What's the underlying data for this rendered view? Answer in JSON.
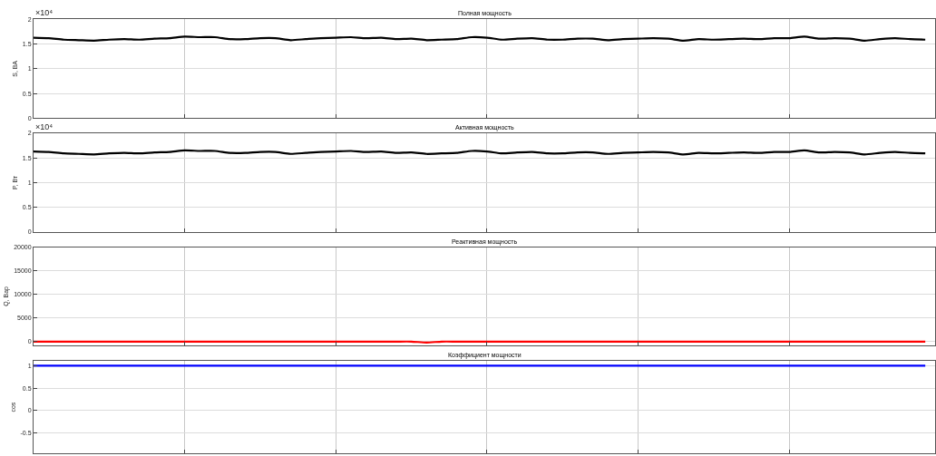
{
  "chart_data": [
    {
      "type": "line",
      "title": "Полная мощность",
      "ylabel": "S, ВА",
      "annotations": [
        "×10⁴"
      ],
      "tick_labels": "y",
      "grid": true,
      "marker": "none",
      "line_style": "solid",
      "categories": [
        null,
        null,
        null,
        null,
        null,
        null,
        null,
        null,
        null,
        null,
        null,
        null,
        null,
        null,
        null,
        null,
        null,
        null,
        null,
        null,
        null,
        null,
        null,
        null,
        null,
        null,
        null,
        null,
        null,
        null,
        null,
        null,
        null,
        null,
        null,
        null,
        null,
        null,
        null,
        null,
        null,
        null,
        null,
        null,
        null,
        null,
        null,
        null,
        null,
        null,
        null,
        null,
        null,
        null,
        null,
        null,
        null,
        null,
        null,
        null
      ],
      "ylim": [
        0,
        2
      ],
      "yticks": [
        0,
        0.5,
        1,
        1.5,
        2
      ],
      "series": [
        {
          "color": "#000000",
          "values": [
            1.63,
            1.62,
            1.59,
            1.58,
            1.57,
            1.59,
            1.6,
            1.59,
            1.61,
            1.62,
            1.65,
            1.64,
            1.64,
            1.6,
            1.6,
            1.62,
            1.62,
            1.58,
            1.6,
            1.62,
            1.63,
            1.64,
            1.62,
            1.63,
            1.6,
            1.61,
            1.58,
            1.59,
            1.6,
            1.64,
            1.63,
            1.59,
            1.61,
            1.62,
            1.59,
            1.59,
            1.61,
            1.61,
            1.58,
            1.6,
            1.61,
            1.62,
            1.61,
            1.57,
            1.6,
            1.59,
            1.6,
            1.61,
            1.6,
            1.62,
            1.62,
            1.65,
            1.61,
            1.62,
            1.61,
            1.57,
            1.6,
            1.62,
            1.6,
            1.59
          ]
        }
      ]
    },
    {
      "type": "line",
      "title": "Активная мощность",
      "ylabel": "P, Вт",
      "annotations": [
        "×10⁴"
      ],
      "tick_labels": "y",
      "grid": true,
      "marker": "none",
      "line_style": "solid",
      "categories": [
        null,
        null,
        null,
        null,
        null,
        null,
        null,
        null,
        null,
        null,
        null,
        null,
        null,
        null,
        null,
        null,
        null,
        null,
        null,
        null,
        null,
        null,
        null,
        null,
        null,
        null,
        null,
        null,
        null,
        null,
        null,
        null,
        null,
        null,
        null,
        null,
        null,
        null,
        null,
        null,
        null,
        null,
        null,
        null,
        null,
        null,
        null,
        null,
        null,
        null,
        null,
        null,
        null,
        null,
        null,
        null,
        null,
        null,
        null,
        null
      ],
      "ylim": [
        0,
        2
      ],
      "yticks": [
        0,
        0.5,
        1,
        1.5,
        2
      ],
      "series": [
        {
          "color": "#000000",
          "values": [
            1.63,
            1.62,
            1.59,
            1.58,
            1.57,
            1.59,
            1.6,
            1.59,
            1.61,
            1.62,
            1.65,
            1.64,
            1.64,
            1.6,
            1.6,
            1.62,
            1.62,
            1.58,
            1.6,
            1.62,
            1.63,
            1.64,
            1.62,
            1.63,
            1.6,
            1.61,
            1.58,
            1.59,
            1.6,
            1.64,
            1.63,
            1.59,
            1.61,
            1.62,
            1.59,
            1.59,
            1.61,
            1.61,
            1.58,
            1.6,
            1.61,
            1.62,
            1.61,
            1.57,
            1.6,
            1.59,
            1.6,
            1.61,
            1.6,
            1.62,
            1.62,
            1.65,
            1.61,
            1.62,
            1.61,
            1.57,
            1.6,
            1.62,
            1.6,
            1.59
          ]
        }
      ]
    },
    {
      "type": "line",
      "title": "Реактивная мощность",
      "ylabel": "Q, Вар",
      "tick_labels": "y",
      "grid": true,
      "marker": "none",
      "line_style": "solid",
      "categories": [
        null,
        null,
        null,
        null,
        null,
        null,
        null,
        null,
        null,
        null,
        null,
        null,
        null,
        null,
        null,
        null,
        null,
        null,
        null,
        null,
        null,
        null,
        null,
        null,
        null,
        null,
        null,
        null,
        null,
        null,
        null,
        null,
        null,
        null,
        null,
        null,
        null,
        null,
        null,
        null,
        null,
        null,
        null,
        null,
        null,
        null,
        null,
        null,
        null,
        null,
        null,
        null,
        null,
        null,
        null,
        null,
        null,
        null,
        null,
        null
      ],
      "ylim": [
        -800,
        20000
      ],
      "yticks": [
        0,
        5000,
        10000,
        15000,
        20000
      ],
      "series": [
        {
          "color": "#ff0000",
          "values": [
            0,
            0,
            0,
            0,
            0,
            0,
            0,
            0,
            0,
            0,
            0,
            0,
            0,
            0,
            0,
            0,
            0,
            0,
            0,
            0,
            0,
            0,
            0,
            0,
            0,
            0,
            -200,
            0,
            0,
            0,
            0,
            0,
            0,
            0,
            0,
            0,
            0,
            0,
            0,
            0,
            0,
            0,
            0,
            0,
            0,
            0,
            0,
            0,
            0,
            0,
            0,
            0,
            0,
            0,
            0,
            0,
            0,
            0,
            0,
            0
          ]
        }
      ]
    },
    {
      "type": "line",
      "title": "Коэффициент мощности",
      "ylabel": "cos",
      "tick_labels": "y",
      "grid": true,
      "marker": "none",
      "line_style": "solid",
      "categories": [
        null,
        null,
        null,
        null,
        null,
        null,
        null,
        null,
        null,
        null,
        null,
        null,
        null,
        null,
        null,
        null,
        null,
        null,
        null,
        null,
        null,
        null,
        null,
        null,
        null,
        null,
        null,
        null,
        null,
        null,
        null,
        null,
        null,
        null,
        null,
        null,
        null,
        null,
        null,
        null,
        null,
        null,
        null,
        null,
        null,
        null,
        null,
        null,
        null,
        null,
        null,
        null,
        null,
        null,
        null,
        null,
        null,
        null,
        null,
        null
      ],
      "ylim": [
        -0.95,
        1.1
      ],
      "yticks": [
        -0.5,
        0,
        0.5,
        1
      ],
      "series": [
        {
          "color": "#0000ff",
          "values": [
            1,
            1,
            1,
            1,
            1,
            1,
            1,
            1,
            1,
            1,
            1,
            1,
            1,
            1,
            1,
            1,
            1,
            1,
            1,
            1,
            1,
            1,
            1,
            1,
            1,
            1,
            1,
            1,
            1,
            1,
            1,
            1,
            1,
            1,
            1,
            1,
            1,
            1,
            1,
            1,
            1,
            1,
            1,
            1,
            1,
            1,
            1,
            1,
            1,
            1,
            1,
            1,
            1,
            1,
            1,
            1,
            1,
            1,
            1,
            1
          ]
        }
      ]
    }
  ]
}
